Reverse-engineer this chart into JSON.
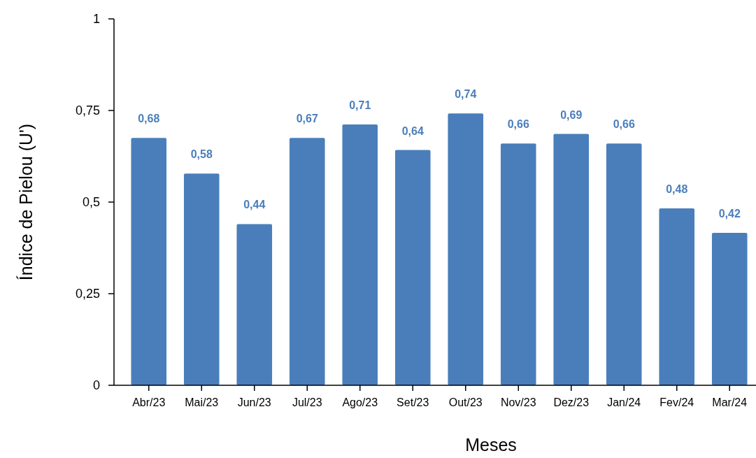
{
  "chart_data": {
    "type": "bar",
    "xlabel": "Meses",
    "ylabel": "Índice de Pielou (U')",
    "categories": [
      "Abr/23",
      "Mai/23",
      "Jun/23",
      "Jul/23",
      "Ago/23",
      "Set/23",
      "Out/23",
      "Nov/23",
      "Dez/23",
      "Jan/24",
      "Fev/24",
      "Mar/24"
    ],
    "series": [
      {
        "color": "#4a7ebb",
        "values": [
          0.675,
          0.578,
          0.44,
          0.675,
          0.712,
          0.642,
          0.742,
          0.66,
          0.686,
          0.66,
          0.483,
          0.416
        ],
        "value_labels": [
          "0,68",
          "0,58",
          "0,44",
          "0,67",
          "0,71",
          "0,64",
          "0,74",
          "0,66",
          "0,69",
          "0,66",
          "0,48",
          "0,42"
        ]
      }
    ],
    "ylim": [
      0,
      1
    ],
    "yticks": [
      0,
      {
        "value": 0.25,
        "label": "0,25"
      },
      {
        "value": 0.5,
        "label": "0,5"
      },
      {
        "value": 0.75,
        "label": "0,75"
      },
      1
    ],
    "grid": false
  }
}
